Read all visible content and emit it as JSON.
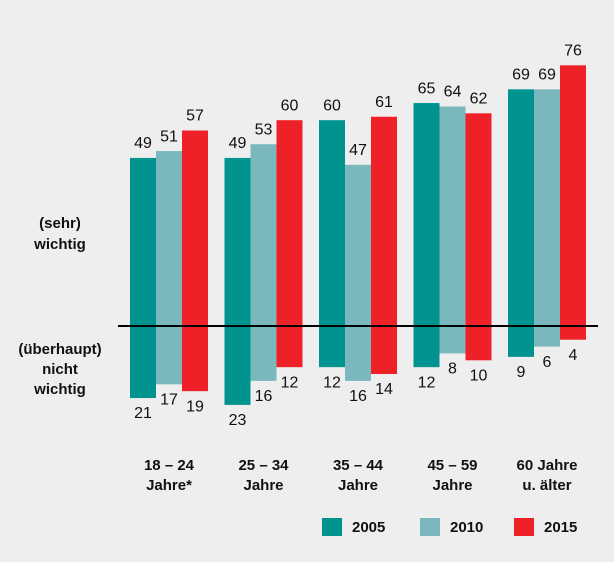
{
  "chart_data": {
    "type": "diverging_bar",
    "categories": [
      [
        "18 – 24",
        "Jahre*"
      ],
      [
        "25 – 34",
        "Jahre"
      ],
      [
        "35 – 44",
        "Jahre"
      ],
      [
        "45 – 59",
        "Jahre"
      ],
      [
        "60 Jahre",
        "u. älter"
      ]
    ],
    "annotation_top": [
      "(sehr)",
      "wichtig"
    ],
    "annotation_bottom": [
      "(überhaupt)",
      "nicht",
      "wichtig"
    ],
    "series": [
      {
        "name": "2005",
        "color": "#00938f",
        "values": [
          49,
          49,
          60,
          65,
          69
        ],
        "values_below": [
          21,
          23,
          12,
          12,
          9
        ]
      },
      {
        "name": "2010",
        "color": "#7ab8bd",
        "values": [
          51,
          53,
          47,
          64,
          69
        ],
        "values_below": [
          17,
          16,
          16,
          8,
          6
        ]
      },
      {
        "name": "2015",
        "color": "#ee2128",
        "values": [
          57,
          60,
          61,
          62,
          76
        ],
        "values_below": [
          19,
          12,
          14,
          10,
          4
        ]
      }
    ],
    "legend": "bottom-right"
  }
}
